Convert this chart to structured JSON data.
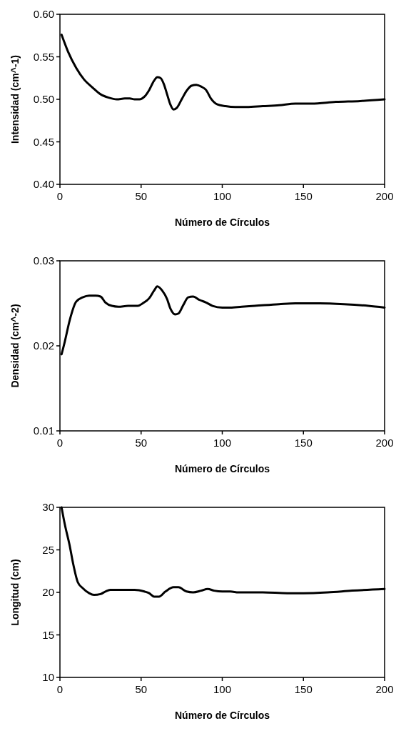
{
  "chart_data": [
    {
      "type": "line",
      "xlabel": "Número de Círculos",
      "ylabel": "Intensidad (cm^-1)",
      "xlim": [
        0,
        200
      ],
      "xticks": [
        0,
        50,
        100,
        150,
        200
      ],
      "ylim": [
        0.4,
        0.6
      ],
      "yticks": [
        {
          "value": 0.4,
          "label": "0.40"
        },
        0.45,
        {
          "value": 0.5,
          "label": "0.50"
        },
        0.55,
        {
          "value": 0.6,
          "label": "0.60"
        }
      ],
      "grid": false,
      "marker": "none",
      "line_style": "solid",
      "series": [
        {
          "color": "#000000",
          "x": [
            1,
            5,
            10,
            15,
            20,
            25,
            30,
            35,
            40,
            43,
            46,
            49,
            52,
            55,
            58,
            60,
            62,
            64,
            66,
            68,
            70,
            72,
            75,
            78,
            81,
            84,
            87,
            90,
            93,
            97,
            102,
            108,
            115,
            125,
            135,
            145,
            155,
            170,
            185,
            200
          ],
          "values": [
            0.576,
            0.556,
            0.537,
            0.523,
            0.514,
            0.506,
            0.502,
            0.5,
            0.501,
            0.501,
            0.5,
            0.5,
            0.503,
            0.511,
            0.522,
            0.526,
            0.525,
            0.518,
            0.506,
            0.494,
            0.488,
            0.49,
            0.5,
            0.51,
            0.516,
            0.517,
            0.515,
            0.511,
            0.501,
            0.494,
            0.492,
            0.491,
            0.491,
            0.492,
            0.493,
            0.495,
            0.495,
            0.497,
            0.498,
            0.5
          ]
        }
      ]
    },
    {
      "type": "line",
      "xlabel": "Número de Círculos",
      "ylabel": "Densidad (cm^-2)",
      "xlim": [
        0,
        200
      ],
      "xticks": [
        0,
        50,
        100,
        150,
        200
      ],
      "ylim": [
        0.01,
        0.03
      ],
      "yticks": [
        0.01,
        0.02,
        0.03
      ],
      "grid": false,
      "marker": "none",
      "line_style": "solid",
      "series": [
        {
          "color": "#000000",
          "x": [
            1,
            3,
            6,
            10,
            14,
            18,
            22,
            25,
            28,
            32,
            36,
            42,
            48,
            51,
            55,
            58,
            60,
            63,
            66,
            68,
            71,
            73,
            76,
            79,
            82,
            86,
            90,
            94,
            100,
            105,
            112,
            120,
            135,
            145,
            160,
            175,
            190,
            200
          ],
          "values": [
            0.019,
            0.0205,
            0.023,
            0.0252,
            0.0257,
            0.0259,
            0.0259,
            0.0258,
            0.0251,
            0.0247,
            0.0246,
            0.0247,
            0.0247,
            0.025,
            0.0256,
            0.0265,
            0.027,
            0.0265,
            0.0255,
            0.0244,
            0.0237,
            0.0238,
            0.0248,
            0.0257,
            0.0258,
            0.0254,
            0.0251,
            0.0247,
            0.0245,
            0.0245,
            0.0246,
            0.0247,
            0.0249,
            0.025,
            0.025,
            0.0249,
            0.0247,
            0.0245
          ]
        }
      ]
    },
    {
      "type": "line",
      "xlabel": "Número de Círculos",
      "ylabel": "Longitud (cm)",
      "xlim": [
        0,
        200
      ],
      "xticks": [
        0,
        50,
        100,
        150,
        200
      ],
      "ylim": [
        10,
        30
      ],
      "yticks": [
        10,
        15,
        20,
        25,
        30
      ],
      "grid": false,
      "marker": "none",
      "line_style": "solid",
      "series": [
        {
          "color": "#000000",
          "x": [
            1,
            3,
            6,
            8,
            11,
            14,
            18,
            21,
            25,
            28,
            31,
            40,
            46,
            52,
            55,
            58,
            61,
            65,
            70,
            73,
            78,
            82,
            87,
            91,
            95,
            100,
            105,
            110,
            125,
            140,
            150,
            165,
            180,
            200
          ],
          "values": [
            30,
            28,
            25.5,
            23.5,
            21.2,
            20.5,
            19.9,
            19.7,
            19.8,
            20.1,
            20.3,
            20.3,
            20.3,
            20.1,
            19.9,
            19.5,
            19.5,
            20.1,
            20.6,
            20.6,
            20.1,
            20,
            20.2,
            20.4,
            20.2,
            20.1,
            20.1,
            20,
            20,
            19.9,
            19.9,
            20,
            20.2,
            20.4
          ]
        }
      ]
    }
  ]
}
